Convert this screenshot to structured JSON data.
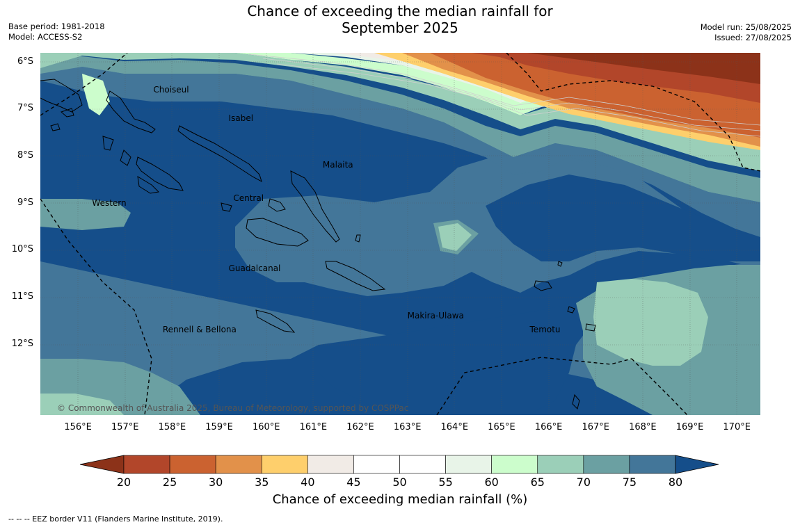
{
  "title": {
    "line1": "Chance of exceeding the median rainfall for",
    "line2": "September 2025"
  },
  "meta_left": {
    "base_period": "Base period: 1981-2018",
    "model": "Model: ACCESS-S2"
  },
  "meta_right": {
    "model_run": "Model run: 25/08/2025",
    "issued": "Issued: 27/08/2025"
  },
  "map": {
    "lat_labels": [
      "6°S",
      "7°S",
      "8°S",
      "9°S",
      "10°S",
      "11°S",
      "12°S"
    ],
    "lat_values": [
      6,
      7,
      8,
      9,
      10,
      11,
      12
    ],
    "lon_labels": [
      "156°E",
      "157°E",
      "158°E",
      "159°E",
      "160°E",
      "161°E",
      "162°E",
      "163°E",
      "164°E",
      "165°E",
      "166°E",
      "167°E",
      "168°E",
      "169°E",
      "170°E"
    ],
    "lon_values": [
      156,
      157,
      158,
      159,
      160,
      161,
      162,
      163,
      164,
      165,
      166,
      167,
      168,
      169,
      170
    ],
    "lon_range": [
      155.2,
      170.5
    ],
    "lat_range": [
      5.8,
      13.5
    ],
    "places": [
      {
        "name": "Choiseul",
        "lon": 157.6,
        "lat": 6.6
      },
      {
        "name": "Isabel",
        "lon": 159.2,
        "lat": 7.2
      },
      {
        "name": "Malaita",
        "lon": 161.2,
        "lat": 8.2
      },
      {
        "name": "Western",
        "lon": 156.3,
        "lat": 9.0
      },
      {
        "name": "Central",
        "lon": 159.3,
        "lat": 8.9
      },
      {
        "name": "Guadalcanal",
        "lon": 159.2,
        "lat": 10.4
      },
      {
        "name": "Makira-Ulawa",
        "lon": 163.0,
        "lat": 11.4
      },
      {
        "name": "Rennell & Bellona",
        "lon": 157.8,
        "lat": 11.7
      },
      {
        "name": "Temotu",
        "lon": 165.6,
        "lat": 11.7
      }
    ],
    "copyright": "© Commonwealth of Australia 2025, Bureau of Meteorology, supported by COSPPac"
  },
  "colorbar": {
    "ticks": [
      "20",
      "25",
      "30",
      "35",
      "40",
      "45",
      "50",
      "55",
      "60",
      "65",
      "70",
      "75",
      "80"
    ],
    "colors": [
      "#8c3219",
      "#b2462a",
      "#cb6230",
      "#e2914a",
      "#fecf6c",
      "#f1ebe6",
      "#ffffff",
      "#ffffff",
      "#e8f4e8",
      "#ccfdcc",
      "#9bcfb8",
      "#6ba0a2",
      "#437699",
      "#154e8a"
    ],
    "title": "Chance of exceeding median rainfall (%)"
  },
  "footnote": "--  --  -- EEZ border V11 (Flanders Marine Institute, 2019)."
}
